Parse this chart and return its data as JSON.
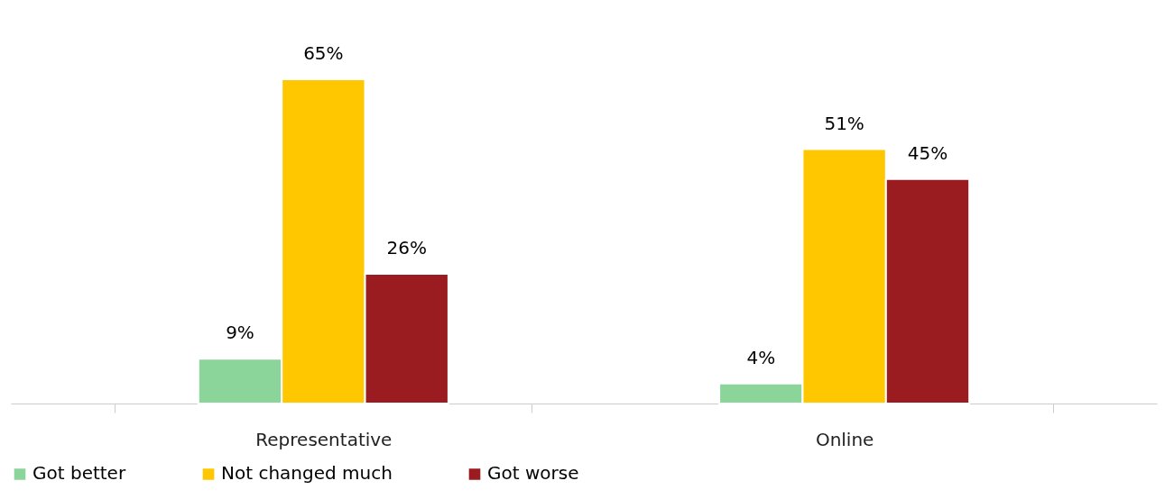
{
  "chart_data": {
    "type": "bar",
    "categories": [
      "Representative",
      "Online"
    ],
    "series": [
      {
        "name": "Got better",
        "color": "#8cd59a",
        "values": [
          9,
          4
        ],
        "value_labels": [
          "9%",
          "4%"
        ]
      },
      {
        "name": "Not changed much",
        "color": "#ffc700",
        "values": [
          65,
          51
        ],
        "value_labels": [
          "65%",
          "51%"
        ]
      },
      {
        "name": "Got worse",
        "color": "#9b1c20",
        "values": [
          26,
          45
        ],
        "value_labels": [
          "26%",
          "45%"
        ]
      }
    ],
    "legend": "bottom",
    "grid": false
  }
}
